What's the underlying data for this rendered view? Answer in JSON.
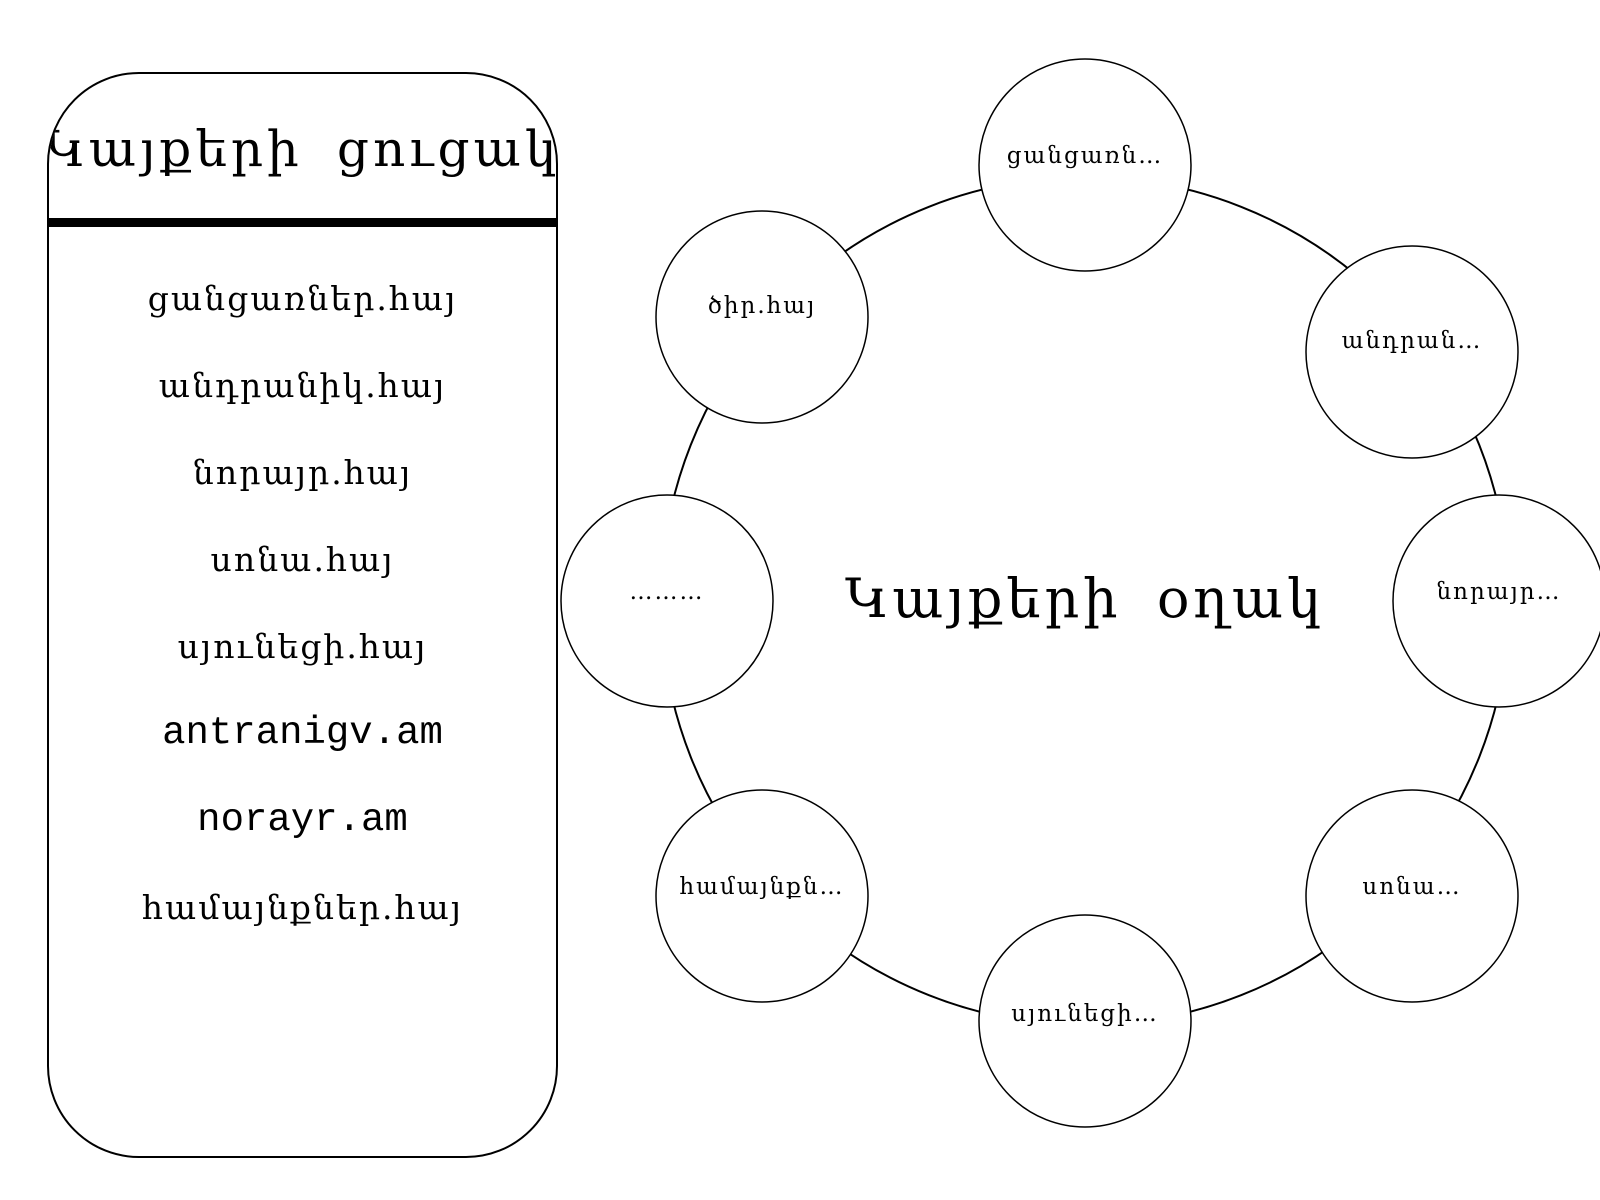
{
  "list": {
    "title": "Կայքերի ցուցակ",
    "items": [
      "ցանցառներ.հայ",
      "անդրանիկ.հայ",
      "նորայր.հայ",
      "սոնա.հայ",
      "սյունեցի.հայ",
      "antranigv.am",
      "norayr.am",
      "համայնքներ.հայ"
    ]
  },
  "ring": {
    "center_label": "Կայքերի օղակ",
    "nodes": [
      "ցանցառն…",
      "անդրան…",
      "նորայր…",
      "սոնա…",
      "սյունեցի…",
      "համայնքն…",
      "………",
      "ծիր.հայ"
    ]
  }
}
